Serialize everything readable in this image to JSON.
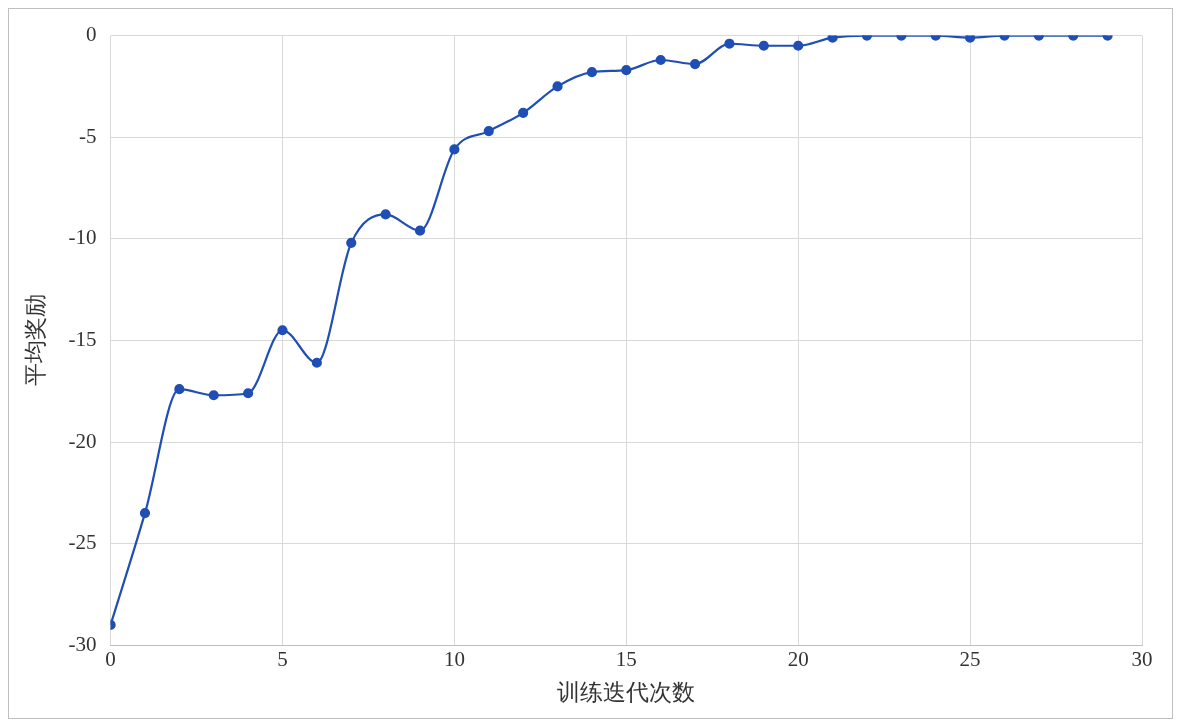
{
  "chart_data": {
    "type": "line",
    "xlabel": "训练迭代次数",
    "ylabel": "平均奖励",
    "x": [
      0,
      1,
      2,
      3,
      4,
      5,
      6,
      7,
      8,
      9,
      10,
      11,
      12,
      13,
      14,
      15,
      16,
      17,
      18,
      19,
      20,
      21,
      22,
      23,
      24,
      25,
      26,
      27,
      28,
      29
    ],
    "series": [
      {
        "color": "#1f4eb4",
        "values": [
          -29.0,
          -23.5,
          -17.4,
          -17.7,
          -17.6,
          -14.5,
          -16.1,
          -10.2,
          -8.8,
          -9.6,
          -5.6,
          -4.7,
          -3.8,
          -2.5,
          -1.8,
          -1.7,
          -1.2,
          -1.4,
          -0.4,
          -0.5,
          -0.5,
          -0.1,
          0,
          0,
          0,
          -0.1,
          0,
          0,
          0,
          0
        ]
      }
    ],
    "xlim": [
      0,
      30
    ],
    "xticks": [
      0,
      5,
      10,
      15,
      20,
      25,
      30
    ],
    "ylim": [
      -30,
      0
    ],
    "yticks": [
      -30,
      -25,
      -20,
      -15,
      -10,
      -5,
      0
    ],
    "grid": true,
    "legend": false,
    "marker": "circle",
    "line_style": "solid"
  }
}
